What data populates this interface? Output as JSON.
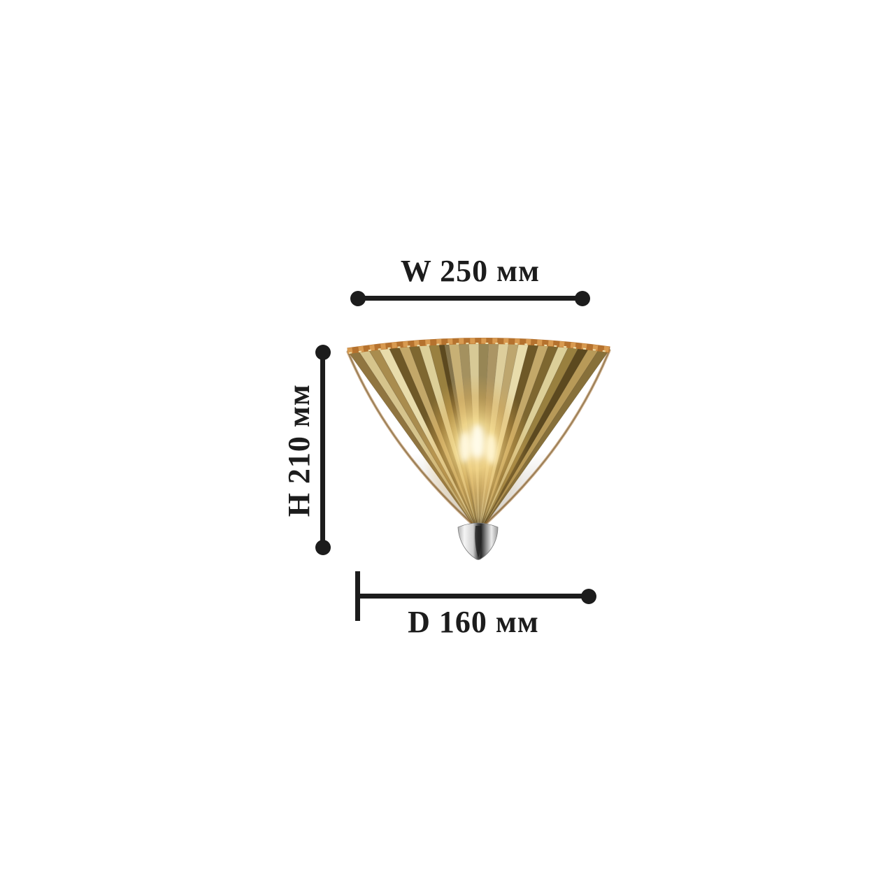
{
  "diagram": {
    "kind": "wall-sconce dimension diagram",
    "unit": "мм"
  },
  "dimensions": {
    "width": {
      "prefix": "W",
      "value": 250,
      "unit": "мм",
      "label": "W 250 мм"
    },
    "height": {
      "prefix": "H",
      "value": 210,
      "unit": "мм",
      "label": "H 210 мм"
    },
    "depth": {
      "prefix": "D",
      "value": 160,
      "unit": "мм",
      "label": "D 160 мм"
    }
  },
  "colors": {
    "line": "#1c1c1c",
    "background": "#ffffff",
    "rim_orange": "#b5722e",
    "rim_sparkle": "#d89a50",
    "glow_core": "#fff6d8",
    "glow_warm": "#f7dd8f",
    "chrome_light": "#f5f5f5",
    "chrome_dark": "#2a2a2a",
    "flutes": [
      "#907540",
      "#d6c48c",
      "#a98c4e",
      "#e8dcab",
      "#6e5827",
      "#c3a869",
      "#7e6730",
      "#dccf98",
      "#99803f",
      "#5c491f",
      "#b89a58",
      "#87703a",
      "#cdbd85",
      "#75602c"
    ]
  }
}
